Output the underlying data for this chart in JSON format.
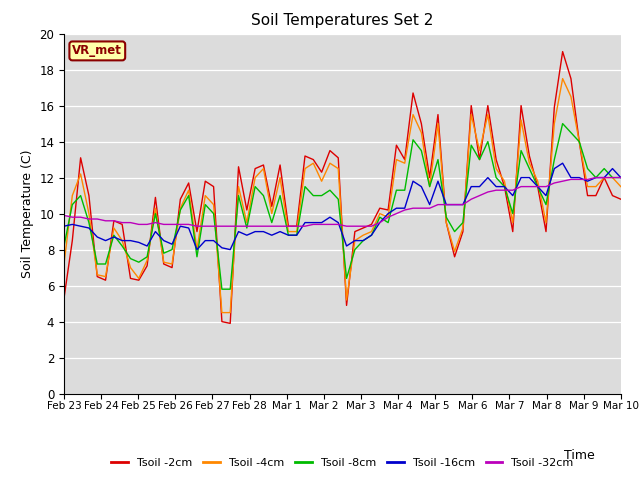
{
  "title": "Soil Temperatures Set 2",
  "xlabel": "Time",
  "ylabel": "Soil Temperature (C)",
  "ylim": [
    0,
    20
  ],
  "yticks": [
    0,
    2,
    4,
    6,
    8,
    10,
    12,
    14,
    16,
    18,
    20
  ],
  "plot_bg_color": "#dcdcdc",
  "fig_bg_color": "#ffffff",
  "annotation_text": "VR_met",
  "annotation_bg": "#ffffaa",
  "annotation_border": "#8b0000",
  "series_colors": [
    "#dd0000",
    "#ff8800",
    "#00bb00",
    "#0000cc",
    "#bb00bb"
  ],
  "series_labels": [
    "Tsoil -2cm",
    "Tsoil -4cm",
    "Tsoil -8cm",
    "Tsoil -16cm",
    "Tsoil -32cm"
  ],
  "xtick_labels": [
    "Feb 23",
    "Feb 24",
    "Feb 25",
    "Feb 26",
    "Feb 27",
    "Feb 28",
    "Mar 1",
    "Mar 2",
    "Mar 3",
    "Mar 4",
    "Mar 5",
    "Mar 6",
    "Mar 7",
    "Mar 8",
    "Mar 9",
    "Mar 10"
  ],
  "tsoil_2cm": [
    5.3,
    8.5,
    13.1,
    11.0,
    6.5,
    6.3,
    9.6,
    9.4,
    6.4,
    6.3,
    7.1,
    10.9,
    7.2,
    7.0,
    10.8,
    11.7,
    9.0,
    11.8,
    11.5,
    4.0,
    3.9,
    12.6,
    10.2,
    12.5,
    12.7,
    10.4,
    12.7,
    9.3,
    9.3,
    13.2,
    13.0,
    12.3,
    13.5,
    13.1,
    4.9,
    9.0,
    9.2,
    9.4,
    10.3,
    10.2,
    13.8,
    13.0,
    16.7,
    15.0,
    12.0,
    15.5,
    9.5,
    7.6,
    9.0,
    16.0,
    13.0,
    16.0,
    13.0,
    11.5,
    9.0,
    16.0,
    13.2,
    11.5,
    9.0,
    15.9,
    19.0,
    17.5,
    14.0,
    11.0,
    11.0,
    12.0,
    11.0,
    10.8
  ],
  "tsoil_4cm": [
    7.2,
    11.0,
    12.2,
    10.0,
    6.6,
    6.5,
    9.2,
    8.5,
    7.0,
    6.4,
    7.4,
    10.3,
    7.3,
    7.2,
    10.3,
    11.3,
    8.0,
    11.0,
    10.5,
    4.5,
    4.5,
    11.5,
    9.5,
    12.0,
    12.5,
    10.0,
    12.0,
    9.0,
    9.0,
    12.5,
    12.8,
    11.8,
    12.8,
    12.5,
    5.2,
    8.5,
    8.8,
    9.0,
    10.0,
    9.8,
    13.0,
    12.8,
    15.5,
    14.5,
    11.5,
    15.0,
    9.5,
    7.9,
    9.2,
    15.5,
    13.5,
    15.5,
    12.5,
    11.8,
    9.5,
    15.2,
    12.8,
    11.8,
    9.5,
    15.0,
    17.5,
    16.5,
    14.0,
    11.5,
    11.5,
    12.0,
    12.0,
    11.5
  ],
  "tsoil_8cm": [
    8.2,
    10.5,
    11.0,
    9.5,
    7.2,
    7.2,
    8.8,
    8.2,
    7.5,
    7.3,
    7.6,
    10.0,
    7.8,
    8.0,
    10.2,
    11.0,
    7.6,
    10.5,
    10.0,
    5.8,
    5.8,
    11.0,
    9.2,
    11.5,
    11.0,
    9.5,
    11.0,
    8.8,
    8.8,
    11.5,
    11.0,
    11.0,
    11.3,
    10.8,
    6.4,
    8.0,
    8.5,
    8.8,
    9.8,
    9.5,
    11.3,
    11.3,
    14.1,
    13.5,
    11.5,
    13.0,
    9.8,
    9.0,
    9.5,
    13.8,
    13.0,
    14.0,
    12.0,
    11.5,
    10.0,
    13.5,
    12.5,
    11.5,
    10.5,
    13.0,
    15.0,
    14.5,
    14.0,
    12.5,
    12.0,
    12.5,
    12.0,
    12.0
  ],
  "tsoil_16cm": [
    9.3,
    9.4,
    9.3,
    9.2,
    8.7,
    8.5,
    8.7,
    8.5,
    8.5,
    8.4,
    8.2,
    9.0,
    8.5,
    8.3,
    9.3,
    9.2,
    8.0,
    8.5,
    8.5,
    8.1,
    8.0,
    9.0,
    8.8,
    9.0,
    9.0,
    8.8,
    9.0,
    8.8,
    8.8,
    9.5,
    9.5,
    9.5,
    9.8,
    9.5,
    8.2,
    8.5,
    8.5,
    8.8,
    9.5,
    10.0,
    10.3,
    10.3,
    11.8,
    11.5,
    10.5,
    11.8,
    10.5,
    10.5,
    10.5,
    11.5,
    11.5,
    12.0,
    11.5,
    11.5,
    11.0,
    12.0,
    12.0,
    11.5,
    11.0,
    12.5,
    12.8,
    12.0,
    12.0,
    11.8,
    12.0,
    12.0,
    12.5,
    12.0
  ],
  "tsoil_32cm": [
    9.9,
    9.8,
    9.8,
    9.7,
    9.7,
    9.6,
    9.6,
    9.5,
    9.5,
    9.4,
    9.4,
    9.5,
    9.4,
    9.4,
    9.4,
    9.4,
    9.3,
    9.3,
    9.3,
    9.3,
    9.3,
    9.3,
    9.3,
    9.3,
    9.3,
    9.3,
    9.3,
    9.3,
    9.3,
    9.3,
    9.4,
    9.4,
    9.4,
    9.4,
    9.3,
    9.3,
    9.3,
    9.3,
    9.5,
    9.8,
    10.0,
    10.2,
    10.3,
    10.3,
    10.3,
    10.5,
    10.5,
    10.5,
    10.5,
    10.8,
    11.0,
    11.2,
    11.3,
    11.3,
    11.3,
    11.5,
    11.5,
    11.5,
    11.5,
    11.7,
    11.8,
    11.9,
    11.9,
    11.9,
    12.0,
    12.0,
    12.0,
    12.0
  ]
}
